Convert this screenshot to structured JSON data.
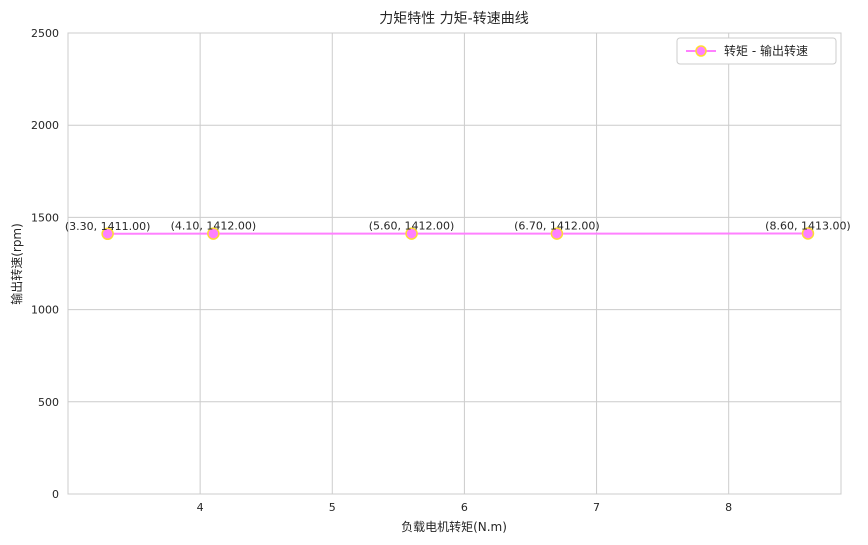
{
  "chart_data": {
    "type": "line",
    "title": "力矩特性 力矩-转速曲线",
    "xlabel": "负载电机转矩(N.m)",
    "ylabel": "输出转速(rpm)",
    "xlim": [
      3.0,
      8.85
    ],
    "ylim": [
      0,
      2500
    ],
    "xticks": [
      4,
      5,
      6,
      7,
      8
    ],
    "yticks": [
      0,
      500,
      1000,
      1500,
      2000,
      2500
    ],
    "grid": true,
    "legend_position": "top-right",
    "series": [
      {
        "name": "转矩 - 输出转速",
        "color": "#ff80ff",
        "marker_edge": "#ffdd33",
        "x": [
          3.3,
          4.1,
          5.6,
          6.7,
          8.6
        ],
        "y": [
          1411,
          1412,
          1412,
          1412,
          1413
        ],
        "labels": [
          "(3.30, 1411.00)",
          "(4.10, 1412.00)",
          "(5.60, 1412.00)",
          "(6.70, 1412.00)",
          "(8.60, 1413.00)"
        ]
      }
    ]
  }
}
